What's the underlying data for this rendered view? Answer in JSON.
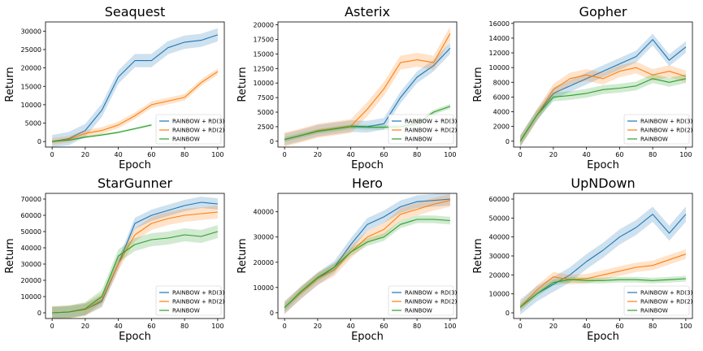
{
  "legend_entries": [
    "RAINBOW + RD(3)",
    "RAINBOW + RD(2)",
    "RAINBOW"
  ],
  "colors": {
    "RAINBOW + RD(3)": "#1f77b4",
    "RAINBOW + RD(2)": "#ff7f0e",
    "RAINBOW": "#2ca02c"
  },
  "chart_data": [
    {
      "type": "line",
      "title": "Seaquest",
      "xlabel": "Epoch",
      "ylabel": "Return",
      "xlim": [
        -4,
        104
      ],
      "ylim": [
        -1500,
        32500
      ],
      "xticks": [
        0,
        20,
        40,
        60,
        80,
        100
      ],
      "yticks": [
        0,
        5000,
        10000,
        15000,
        20000,
        25000,
        30000
      ],
      "legend": "lower right",
      "x": [
        0,
        10,
        20,
        30,
        40,
        50,
        60,
        70,
        80,
        90,
        100
      ],
      "series": [
        {
          "name": "RAINBOW + RD(3)",
          "values": [
            0,
            800,
            3000,
            8500,
            17500,
            22000,
            22000,
            25500,
            27000,
            27500,
            29000
          ],
          "band": 1800
        },
        {
          "name": "RAINBOW + RD(2)",
          "values": [
            0,
            600,
            2200,
            3000,
            4500,
            7000,
            10000,
            11000,
            12000,
            16000,
            19000
          ],
          "band": 900
        },
        {
          "name": "RAINBOW",
          "values": [
            0,
            400,
            1200,
            1800,
            2500,
            3500,
            4500,
            null,
            null,
            null,
            null
          ],
          "band": 300
        }
      ]
    },
    {
      "type": "line",
      "title": "Asterix",
      "xlabel": "Epoch",
      "ylabel": "Return",
      "xlim": [
        -4,
        104
      ],
      "ylim": [
        -1000,
        20500
      ],
      "xticks": [
        0,
        20,
        40,
        60,
        80,
        100
      ],
      "yticks": [
        0,
        2500,
        5000,
        7500,
        10000,
        12500,
        15000,
        17500,
        20000
      ],
      "legend": "lower right",
      "x": [
        0,
        10,
        20,
        30,
        40,
        50,
        60,
        70,
        80,
        90,
        100
      ],
      "series": [
        {
          "name": "RAINBOW + RD(3)",
          "values": [
            300,
            1000,
            1800,
            2200,
            2600,
            2500,
            3000,
            7500,
            11000,
            13000,
            16000
          ],
          "band": 1000
        },
        {
          "name": "RAINBOW + RD(2)",
          "values": [
            300,
            1000,
            1800,
            2200,
            2600,
            5500,
            9000,
            13500,
            14000,
            13500,
            18500
          ],
          "band": 1200
        },
        {
          "name": "RAINBOW",
          "values": [
            300,
            1000,
            1700,
            2100,
            2500,
            2400,
            2400,
            2500,
            3000,
            5000,
            6000
          ],
          "band": 400
        }
      ]
    },
    {
      "type": "line",
      "title": "Gopher",
      "xlabel": "Epoch",
      "ylabel": "Return",
      "xlim": [
        -4,
        104
      ],
      "ylim": [
        -800,
        16200
      ],
      "xticks": [
        0,
        20,
        40,
        60,
        80,
        100
      ],
      "yticks": [
        0,
        2000,
        4000,
        6000,
        8000,
        10000,
        12000,
        14000,
        16000
      ],
      "legend": "lower right",
      "x": [
        0,
        10,
        20,
        30,
        40,
        50,
        60,
        70,
        80,
        90,
        100
      ],
      "series": [
        {
          "name": "RAINBOW + RD(3)",
          "values": [
            0,
            3500,
            6500,
            7500,
            8500,
            9500,
            10500,
            11500,
            13800,
            11000,
            12800
          ],
          "band": 800
        },
        {
          "name": "RAINBOW + RD(2)",
          "values": [
            0,
            3500,
            7000,
            8500,
            9000,
            8500,
            9500,
            10000,
            9000,
            9500,
            8800
          ],
          "band": 800
        },
        {
          "name": "RAINBOW",
          "values": [
            0,
            3500,
            6000,
            6200,
            6500,
            7000,
            7200,
            7500,
            8500,
            8000,
            8500
          ],
          "band": 600
        }
      ]
    },
    {
      "type": "line",
      "title": "StarGunner",
      "xlabel": "Epoch",
      "ylabel": "Return",
      "xlim": [
        -4,
        104
      ],
      "ylim": [
        -3500,
        73500
      ],
      "xticks": [
        0,
        20,
        40,
        60,
        80,
        100
      ],
      "yticks": [
        0,
        10000,
        20000,
        30000,
        40000,
        50000,
        60000,
        70000
      ],
      "legend": "lower right",
      "x": [
        0,
        10,
        20,
        30,
        40,
        50,
        60,
        70,
        80,
        90,
        100
      ],
      "series": [
        {
          "name": "RAINBOW + RD(3)",
          "values": [
            0,
            500,
            2000,
            7000,
            30000,
            55000,
            60000,
            63000,
            66000,
            68000,
            67000
          ],
          "band": 3500
        },
        {
          "name": "RAINBOW + RD(2)",
          "values": [
            0,
            500,
            2000,
            8000,
            30000,
            48000,
            55000,
            58000,
            60000,
            61000,
            62000
          ],
          "band": 4000
        },
        {
          "name": "RAINBOW",
          "values": [
            0,
            500,
            2500,
            10000,
            35000,
            42000,
            45000,
            46000,
            48000,
            47000,
            50000
          ],
          "band": 4000
        }
      ]
    },
    {
      "type": "line",
      "title": "Hero",
      "xlabel": "Epoch",
      "ylabel": "Return",
      "xlim": [
        -4,
        104
      ],
      "ylim": [
        -2300,
        47300
      ],
      "xticks": [
        0,
        20,
        40,
        60,
        80,
        100
      ],
      "yticks": [
        0,
        10000,
        20000,
        30000,
        40000
      ],
      "legend": "lower right",
      "x": [
        0,
        10,
        20,
        30,
        40,
        50,
        60,
        70,
        80,
        90,
        100
      ],
      "series": [
        {
          "name": "RAINBOW + RD(3)",
          "values": [
            2000,
            8000,
            13500,
            18000,
            27000,
            35000,
            38000,
            42000,
            44000,
            44500,
            45000
          ],
          "band": 2500
        },
        {
          "name": "RAINBOW + RD(2)",
          "values": [
            2000,
            8000,
            13500,
            17000,
            24000,
            30000,
            33000,
            39000,
            41000,
            43000,
            44500
          ],
          "band": 2500
        },
        {
          "name": "RAINBOW",
          "values": [
            2000,
            8500,
            14000,
            18000,
            24000,
            28000,
            30000,
            35000,
            37000,
            37000,
            36500
          ],
          "band": 1500
        }
      ]
    },
    {
      "type": "line",
      "title": "UpNDown",
      "xlabel": "Epoch",
      "ylabel": "Return",
      "xlim": [
        -4,
        104
      ],
      "ylim": [
        -3000,
        63000
      ],
      "xticks": [
        0,
        20,
        40,
        60,
        80,
        100
      ],
      "yticks": [
        0,
        10000,
        20000,
        30000,
        40000,
        50000,
        60000
      ],
      "legend": "lower right",
      "x": [
        0,
        10,
        20,
        30,
        40,
        50,
        60,
        70,
        80,
        90,
        100
      ],
      "series": [
        {
          "name": "RAINBOW + RD(3)",
          "values": [
            3000,
            10000,
            15000,
            20000,
            27000,
            33000,
            40000,
            45000,
            52000,
            42000,
            52000
          ],
          "band": 4000
        },
        {
          "name": "RAINBOW + RD(2)",
          "values": [
            3000,
            12000,
            19000,
            17500,
            18000,
            20000,
            22000,
            24000,
            25000,
            28000,
            31000
          ],
          "band": 2500
        },
        {
          "name": "RAINBOW",
          "values": [
            3000,
            10000,
            16000,
            17500,
            17000,
            17000,
            17500,
            17500,
            17000,
            17500,
            18000
          ],
          "band": 1500
        }
      ]
    }
  ]
}
